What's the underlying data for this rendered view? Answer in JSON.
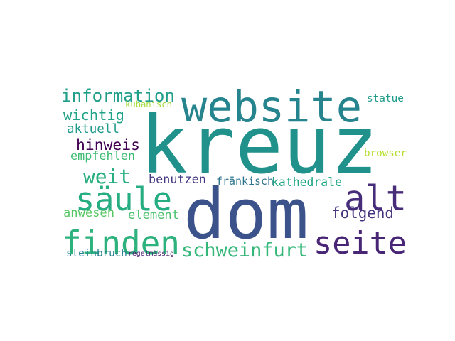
{
  "words": [
    {
      "text": "kreuz",
      "color": "#21918c"
    },
    {
      "text": "dom",
      "color": "#3b528b"
    },
    {
      "text": "website",
      "color": "#25848e"
    },
    {
      "text": "alt",
      "color": "#472c7a"
    },
    {
      "text": "seite",
      "color": "#482575"
    },
    {
      "text": "finden",
      "color": "#2db27d"
    },
    {
      "text": "säule",
      "color": "#26ad81"
    },
    {
      "text": "schweinfurt",
      "color": "#35b779"
    },
    {
      "text": "information",
      "color": "#1f9e89"
    },
    {
      "text": "weit",
      "color": "#29af7f"
    },
    {
      "text": "wichtig",
      "color": "#20a386"
    },
    {
      "text": "aktuell",
      "color": "#1f9a8a"
    },
    {
      "text": "hinweis",
      "color": "#440154"
    },
    {
      "text": "empfehlen",
      "color": "#3fbc73"
    },
    {
      "text": "benutzen",
      "color": "#443983"
    },
    {
      "text": "kathedrale",
      "color": "#22a785"
    },
    {
      "text": "folgend",
      "color": "#46337e"
    },
    {
      "text": "anwesen",
      "color": "#58c765"
    },
    {
      "text": "element",
      "color": "#4ac16d"
    },
    {
      "text": "steinbruch",
      "color": "#277f8e"
    },
    {
      "text": "regelmässig",
      "color": "#481a6c"
    },
    {
      "text": "fränkisch",
      "color": "#2c738e"
    },
    {
      "text": "statue",
      "color": "#1e9c89"
    },
    {
      "text": "browser",
      "color": "#b5de2b"
    },
    {
      "text": "kubanisch",
      "color": "#a2da37"
    }
  ]
}
